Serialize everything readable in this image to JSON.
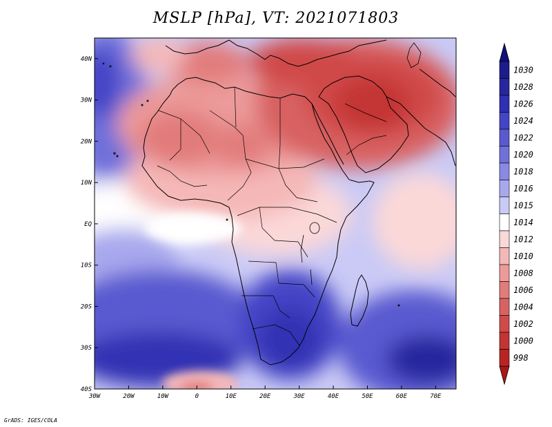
{
  "title": "MSLP [hPa], VT: 2021071803",
  "footer": "GrADS: IGES/COLA",
  "map": {
    "lon_range": [
      -30,
      76
    ],
    "lat_range": [
      -40,
      45
    ],
    "lon_ticks": [
      {
        "value": -30,
        "label": "30W"
      },
      {
        "value": -20,
        "label": "20W"
      },
      {
        "value": -10,
        "label": "10W"
      },
      {
        "value": 0,
        "label": "0"
      },
      {
        "value": 10,
        "label": "10E"
      },
      {
        "value": 20,
        "label": "20E"
      },
      {
        "value": 30,
        "label": "30E"
      },
      {
        "value": 40,
        "label": "40E"
      },
      {
        "value": 50,
        "label": "50E"
      },
      {
        "value": 60,
        "label": "60E"
      },
      {
        "value": 70,
        "label": "70E"
      }
    ],
    "lat_ticks": [
      {
        "value": 40,
        "label": "40N"
      },
      {
        "value": 30,
        "label": "30N"
      },
      {
        "value": 20,
        "label": "20N"
      },
      {
        "value": 10,
        "label": "10N"
      },
      {
        "value": 0,
        "label": "EQ"
      },
      {
        "value": -10,
        "label": "10S"
      },
      {
        "value": -20,
        "label": "20S"
      },
      {
        "value": -30,
        "label": "30S"
      },
      {
        "value": -40,
        "label": "40S"
      }
    ]
  },
  "colorbar": {
    "levels": [
      {
        "label": "1030",
        "color": "#1c1c8c"
      },
      {
        "label": "1028",
        "color": "#26269e"
      },
      {
        "label": "1026",
        "color": "#3030b4"
      },
      {
        "label": "1024",
        "color": "#4444c6"
      },
      {
        "label": "1022",
        "color": "#5a5ad0"
      },
      {
        "label": "1020",
        "color": "#7070da"
      },
      {
        "label": "1018",
        "color": "#8a8ae4"
      },
      {
        "label": "1016",
        "color": "#a8a8ee"
      },
      {
        "label": "1015",
        "color": "#cacaf6"
      },
      {
        "label": "1014",
        "color": "#ffffff"
      },
      {
        "label": "1012",
        "color": "#fbd8d8"
      },
      {
        "label": "1010",
        "color": "#f5b8b8"
      },
      {
        "label": "1008",
        "color": "#ec9a9a"
      },
      {
        "label": "1006",
        "color": "#e27c7c"
      },
      {
        "label": "1004",
        "color": "#d86262"
      },
      {
        "label": "1002",
        "color": "#d04a4a"
      },
      {
        "label": "1000",
        "color": "#c43434"
      },
      {
        "label": "998",
        "color": "#b82424"
      }
    ],
    "top_arrow_color": "#101078",
    "bottom_arrow_color": "#a81818"
  }
}
